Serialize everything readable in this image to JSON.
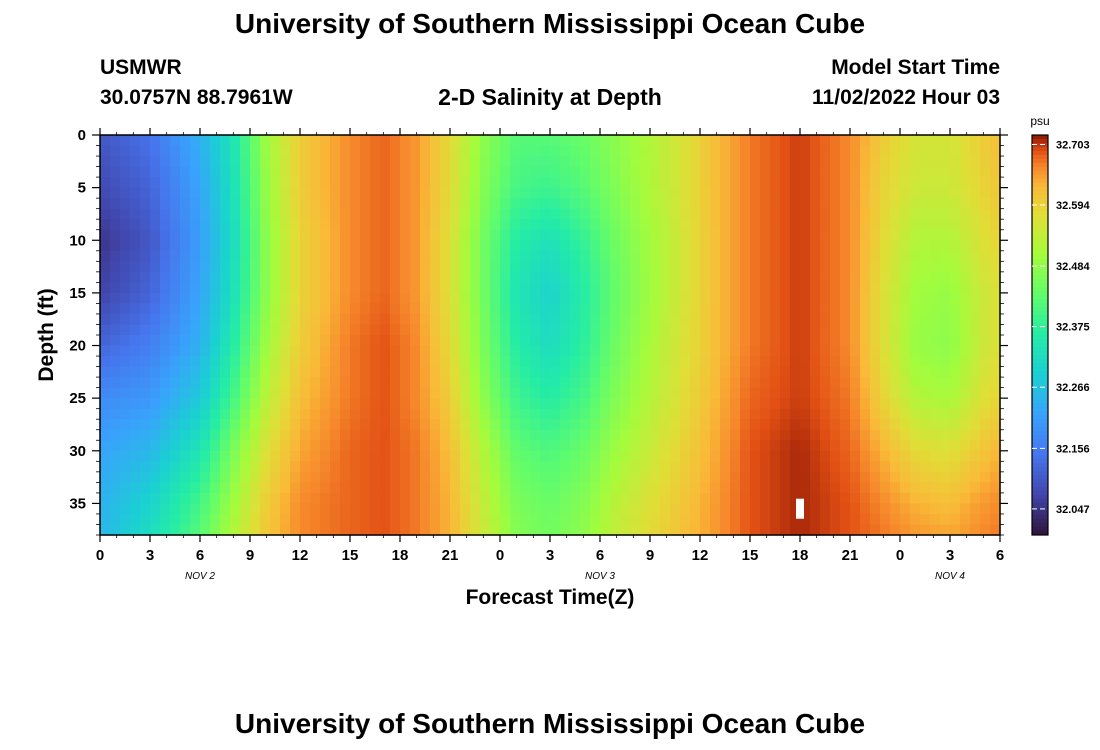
{
  "header": {
    "title": "University of Southern Mississippi Ocean Cube",
    "station": "USMWR",
    "coordinates": "30.0757N  88.7961W",
    "subtitle": "2-D Salinity at Depth",
    "start_label": "Model Start Time",
    "start_value": "11/02/2022 Hour 03"
  },
  "footer": {
    "title": "University of Southern Mississippi Ocean Cube"
  },
  "chart_data": {
    "type": "heatmap",
    "title": "2-D Salinity at Depth",
    "xlabel": "Forecast Time(Z)",
    "ylabel": "Depth (ft)",
    "x_tick_labels": [
      "0",
      "3",
      "6",
      "9",
      "12",
      "15",
      "18",
      "21",
      "0",
      "3",
      "6",
      "9",
      "12",
      "15",
      "18",
      "21",
      "0",
      "3",
      "6"
    ],
    "x_day_labels": [
      {
        "label": "NOV 2",
        "at_hour": 6
      },
      {
        "label": "NOV 3",
        "at_hour": 30
      },
      {
        "label": "NOV 4",
        "at_hour": 51
      }
    ],
    "xlim_hours": [
      0,
      54
    ],
    "y_ticks": [
      0,
      5,
      10,
      15,
      20,
      25,
      30,
      35
    ],
    "ylim": [
      0,
      38
    ],
    "y_reversed": true,
    "colorbar": {
      "unit": "psu",
      "ticks": [
        "32.703",
        "32.594",
        "32.484",
        "32.375",
        "32.266",
        "32.156",
        "32.047"
      ],
      "range": [
        32.0,
        32.72
      ],
      "colormap": "turbo"
    },
    "depth_profile_ft": [
      0,
      5,
      10,
      15,
      20,
      25,
      30,
      35,
      38
    ],
    "salinity_series": [
      {
        "hour": 0,
        "values_psu": [
          32.1,
          32.08,
          32.05,
          32.07,
          32.12,
          32.18,
          32.22,
          32.24,
          32.25
        ]
      },
      {
        "hour": 3,
        "values_psu": [
          32.14,
          32.12,
          32.1,
          32.12,
          32.16,
          32.2,
          32.25,
          32.3,
          32.32
        ]
      },
      {
        "hour": 6,
        "values_psu": [
          32.24,
          32.22,
          32.21,
          32.22,
          32.24,
          32.28,
          32.34,
          32.4,
          32.42
        ]
      },
      {
        "hour": 8,
        "values_psu": [
          32.34,
          32.33,
          32.32,
          32.33,
          32.36,
          32.4,
          32.46,
          32.5,
          32.52
        ]
      },
      {
        "hour": 10,
        "values_psu": [
          32.5,
          32.49,
          32.48,
          32.48,
          32.5,
          32.53,
          32.57,
          32.6,
          32.61
        ]
      },
      {
        "hour": 12,
        "values_psu": [
          32.6,
          32.6,
          32.59,
          32.59,
          32.6,
          32.62,
          32.64,
          32.66,
          32.66
        ]
      },
      {
        "hour": 15,
        "values_psu": [
          32.66,
          32.66,
          32.66,
          32.66,
          32.67,
          32.67,
          32.68,
          32.68,
          32.68
        ]
      },
      {
        "hour": 17,
        "values_psu": [
          32.68,
          32.68,
          32.68,
          32.68,
          32.69,
          32.69,
          32.69,
          32.69,
          32.69
        ]
      },
      {
        "hour": 19,
        "values_psu": [
          32.65,
          32.65,
          32.65,
          32.65,
          32.66,
          32.66,
          32.67,
          32.67,
          32.67
        ]
      },
      {
        "hour": 21,
        "values_psu": [
          32.58,
          32.58,
          32.57,
          32.57,
          32.58,
          32.6,
          32.62,
          32.63,
          32.63
        ]
      },
      {
        "hour": 23,
        "values_psu": [
          32.48,
          32.47,
          32.45,
          32.45,
          32.46,
          32.48,
          32.52,
          32.54,
          32.55
        ]
      },
      {
        "hour": 25,
        "values_psu": [
          32.42,
          32.4,
          32.36,
          32.34,
          32.36,
          32.39,
          32.43,
          32.46,
          32.47
        ]
      },
      {
        "hour": 27,
        "values_psu": [
          32.42,
          32.39,
          32.33,
          32.3,
          32.32,
          32.36,
          32.41,
          32.44,
          32.45
        ]
      },
      {
        "hour": 29,
        "values_psu": [
          32.44,
          32.42,
          32.38,
          32.36,
          32.37,
          32.4,
          32.44,
          32.47,
          32.48
        ]
      },
      {
        "hour": 31,
        "values_psu": [
          32.48,
          32.47,
          32.45,
          32.44,
          32.45,
          32.47,
          32.5,
          32.53,
          32.54
        ]
      },
      {
        "hour": 34,
        "values_psu": [
          32.54,
          32.54,
          32.53,
          32.53,
          32.54,
          32.55,
          32.57,
          32.59,
          32.6
        ]
      },
      {
        "hour": 37,
        "values_psu": [
          32.62,
          32.62,
          32.62,
          32.62,
          32.62,
          32.63,
          32.64,
          32.65,
          32.65
        ]
      },
      {
        "hour": 39,
        "values_psu": [
          32.67,
          32.67,
          32.67,
          32.67,
          32.67,
          32.68,
          32.69,
          32.69,
          32.69
        ]
      },
      {
        "hour": 42,
        "values_psu": [
          32.7,
          32.7,
          32.7,
          32.7,
          32.7,
          32.7,
          32.71,
          32.71,
          32.71
        ]
      },
      {
        "hour": 45,
        "values_psu": [
          32.66,
          32.66,
          32.66,
          32.66,
          32.66,
          32.67,
          32.68,
          32.69,
          32.69
        ]
      },
      {
        "hour": 47,
        "values_psu": [
          32.6,
          32.59,
          32.58,
          32.57,
          32.57,
          32.59,
          32.63,
          32.66,
          32.67
        ]
      },
      {
        "hour": 49,
        "values_psu": [
          32.56,
          32.55,
          32.52,
          32.5,
          32.49,
          32.52,
          32.58,
          32.63,
          32.65
        ]
      },
      {
        "hour": 51,
        "values_psu": [
          32.56,
          32.55,
          32.52,
          32.49,
          32.48,
          32.51,
          32.57,
          32.62,
          32.64
        ]
      },
      {
        "hour": 53,
        "values_psu": [
          32.6,
          32.59,
          32.57,
          32.55,
          32.55,
          32.57,
          32.61,
          32.65,
          32.66
        ]
      },
      {
        "hour": 54,
        "values_psu": [
          32.62,
          32.61,
          32.59,
          32.57,
          32.57,
          32.59,
          32.63,
          32.66,
          32.67
        ]
      }
    ],
    "highlight_marker": {
      "hour": 42,
      "depth_ft": 35.5,
      "color": "#ffffff"
    }
  }
}
